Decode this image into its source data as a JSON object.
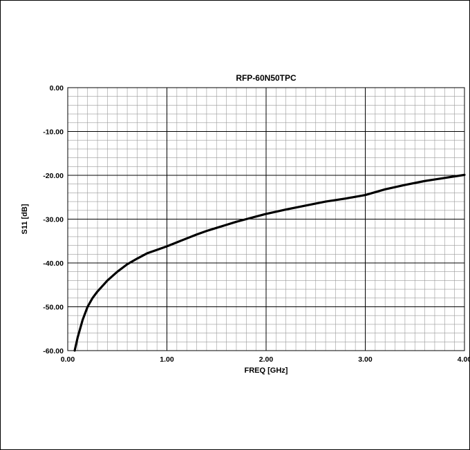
{
  "chart_data": {
    "type": "line",
    "title": "RFP-60N50TPC",
    "xlabel": "FREQ [GHz]",
    "ylabel": "S11 [dB]",
    "xlim": [
      0,
      4
    ],
    "ylim": [
      -60,
      0
    ],
    "x_ticks": [
      "0.00",
      "1.00",
      "2.00",
      "3.00",
      "4.00"
    ],
    "y_ticks": [
      "0.00",
      "-10.00",
      "-20.00",
      "-30.00",
      "-40.00",
      "-50.00",
      "-60.00"
    ],
    "grid": true,
    "series": [
      {
        "color": "#000000",
        "x": [
          0.07,
          0.1,
          0.15,
          0.2,
          0.25,
          0.3,
          0.4,
          0.5,
          0.6,
          0.7,
          0.8,
          0.9,
          1.0,
          1.1,
          1.2,
          1.3,
          1.4,
          1.5,
          1.6,
          1.7,
          1.8,
          1.9,
          2.0,
          2.2,
          2.4,
          2.6,
          2.8,
          3.0,
          3.2,
          3.4,
          3.6,
          3.8,
          4.0
        ],
        "y": [
          -60.0,
          -57.0,
          -53.0,
          -50.0,
          -48.0,
          -46.5,
          -44.0,
          -42.0,
          -40.3,
          -39.0,
          -37.8,
          -37.0,
          -36.2,
          -35.3,
          -34.4,
          -33.5,
          -32.7,
          -32.0,
          -31.3,
          -30.6,
          -30.0,
          -29.4,
          -28.8,
          -27.8,
          -26.9,
          -26.0,
          -25.3,
          -24.5,
          -23.2,
          -22.2,
          -21.3,
          -20.6,
          -19.9
        ]
      }
    ]
  }
}
